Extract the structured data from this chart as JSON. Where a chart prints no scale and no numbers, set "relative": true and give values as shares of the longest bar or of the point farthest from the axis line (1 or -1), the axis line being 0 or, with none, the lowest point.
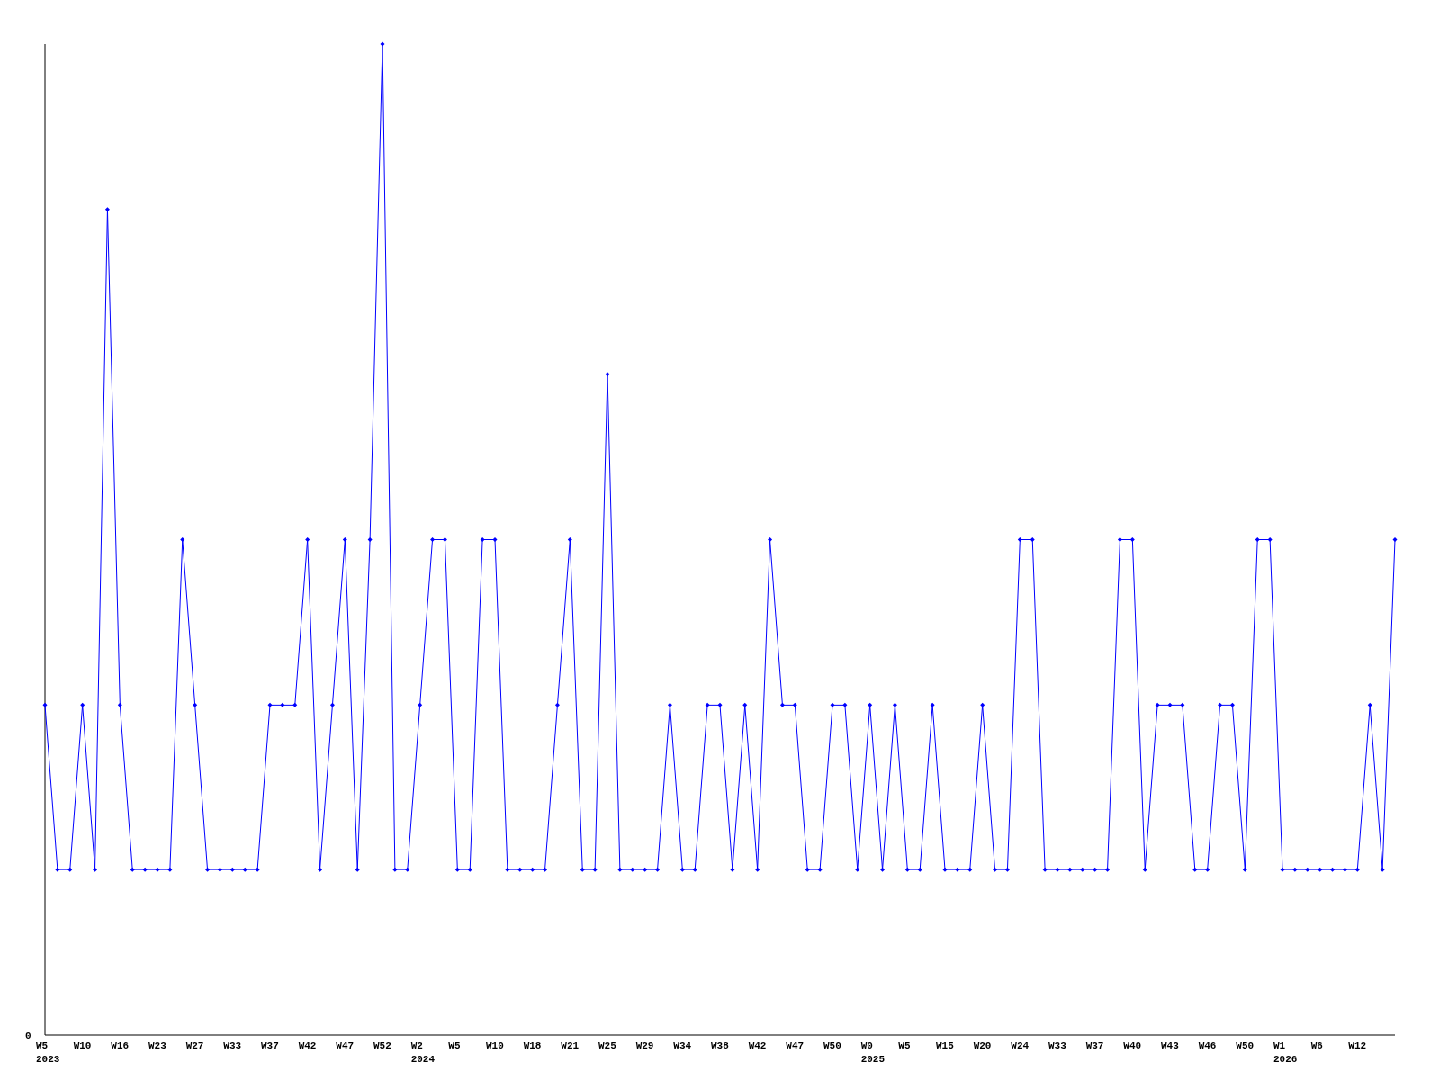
{
  "chart_data": {
    "type": "line",
    "relative": true,
    "marker": "diamond",
    "annotations": [
      "0"
    ],
    "categories": [
      "W5\n2023",
      null,
      null,
      "W10",
      null,
      null,
      "W16",
      null,
      null,
      "W23",
      null,
      null,
      "W27",
      null,
      null,
      "W33",
      null,
      null,
      "W37",
      null,
      null,
      "W42",
      null,
      null,
      "W47",
      null,
      null,
      "W52",
      null,
      null,
      "W2\n2024",
      null,
      null,
      "W5",
      null,
      null,
      "W10",
      null,
      null,
      "W18",
      null,
      null,
      "W21",
      null,
      null,
      "W25",
      null,
      null,
      "W29",
      null,
      null,
      "W34",
      null,
      null,
      "W38",
      null,
      null,
      "W42",
      null,
      null,
      "W47",
      null,
      null,
      "W50",
      null,
      null,
      "W0\n2025",
      null,
      null,
      "W5",
      null,
      null,
      "W15",
      null,
      null,
      "W20",
      null,
      null,
      "W24",
      null,
      null,
      "W33",
      null,
      null,
      "W37",
      null,
      null,
      "W40",
      null,
      null,
      "W43",
      null,
      null,
      "W46",
      null,
      null,
      "W50",
      null,
      null,
      "W1\n2026",
      null,
      null,
      "W6",
      null,
      null,
      "W12",
      null,
      null,
      null
    ],
    "series": [
      {
        "color": "#0000ff",
        "values": [
          0.333,
          0.167,
          0.167,
          0.333,
          0.167,
          0.833,
          0.333,
          0.167,
          0.167,
          0.167,
          0.167,
          0.5,
          0.333,
          0.167,
          0.167,
          0.167,
          0.167,
          0.167,
          0.333,
          0.333,
          0.333,
          0.5,
          0.167,
          0.333,
          0.5,
          0.167,
          0.5,
          1,
          0.167,
          0.167,
          0.333,
          0.5,
          0.5,
          0.167,
          0.167,
          0.5,
          0.5,
          0.167,
          0.167,
          0.167,
          0.167,
          0.333,
          0.5,
          0.167,
          0.167,
          0.667,
          0.167,
          0.167,
          0.167,
          0.167,
          0.333,
          0.167,
          0.167,
          0.333,
          0.333,
          0.167,
          0.333,
          0.167,
          0.5,
          0.333,
          0.333,
          0.167,
          0.167,
          0.333,
          0.333,
          0.167,
          0.333,
          0.167,
          0.333,
          0.167,
          0.167,
          0.333,
          0.167,
          0.167,
          0.167,
          0.333,
          0.167,
          0.167,
          0.5,
          0.5,
          0.167,
          0.167,
          0.167,
          0.167,
          0.167,
          0.167,
          0.5,
          0.5,
          0.167,
          0.333,
          0.333,
          0.333,
          0.167,
          0.167,
          0.333,
          0.333,
          0.167,
          0.5,
          0.5,
          0.167,
          0.167,
          0.167,
          0.167,
          0.167,
          0.167,
          0.167,
          0.333,
          0.167,
          0.5
        ]
      }
    ]
  }
}
